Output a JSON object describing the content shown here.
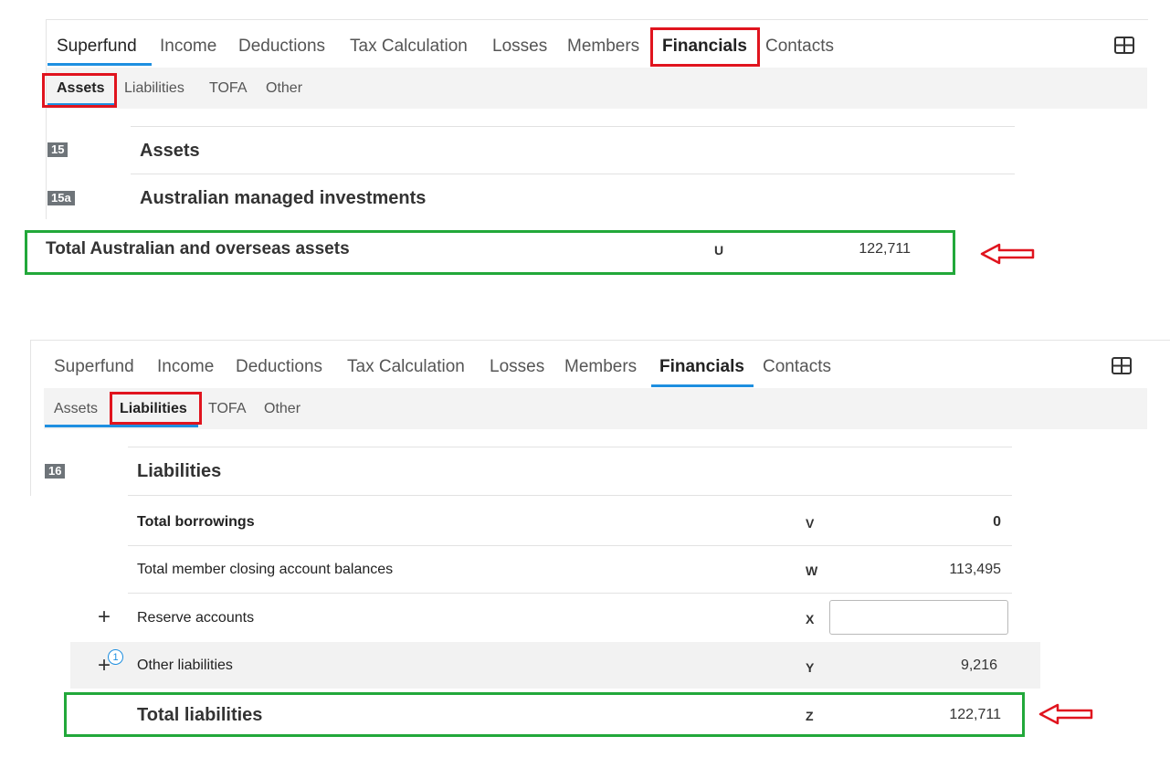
{
  "colors": {
    "accent_blue": "#1e8fe0",
    "highlight_red": "#e0141e",
    "highlight_green": "#22a83a",
    "badge_gray": "#6e7479"
  },
  "panel1": {
    "tabs": [
      "Superfund",
      "Income",
      "Deductions",
      "Tax Calculation",
      "Losses",
      "Members",
      "Financials",
      "Contacts"
    ],
    "subtabs": [
      "Assets",
      "Liabilities",
      "TOFA",
      "Other"
    ],
    "layout_icon": "grid-layout-icon",
    "section_15": {
      "badge": "15",
      "title": "Assets"
    },
    "section_15a": {
      "badge": "15a",
      "title": "Australian managed investments"
    }
  },
  "total_assets": {
    "label": "Total Australian and overseas assets",
    "code": "U",
    "value": "122,711"
  },
  "panel2": {
    "tabs": [
      "Superfund",
      "Income",
      "Deductions",
      "Tax Calculation",
      "Losses",
      "Members",
      "Financials",
      "Contacts"
    ],
    "subtabs": [
      "Assets",
      "Liabilities",
      "TOFA",
      "Other"
    ],
    "layout_icon": "grid-layout-icon",
    "section_16": {
      "badge": "16",
      "title": "Liabilities"
    }
  },
  "liabilities": {
    "rows": [
      {
        "label": "Total borrowings",
        "code": "V",
        "value": "0"
      },
      {
        "label": "Total member closing account balances",
        "code": "W",
        "value": "113,495"
      },
      {
        "label": "Reserve accounts",
        "code": "X",
        "value": ""
      },
      {
        "label": "Other liabilities",
        "code": "Y",
        "value": "9,216",
        "badge": "1"
      }
    ],
    "total": {
      "label": "Total liabilities",
      "code": "Z",
      "value": "122,711"
    }
  }
}
